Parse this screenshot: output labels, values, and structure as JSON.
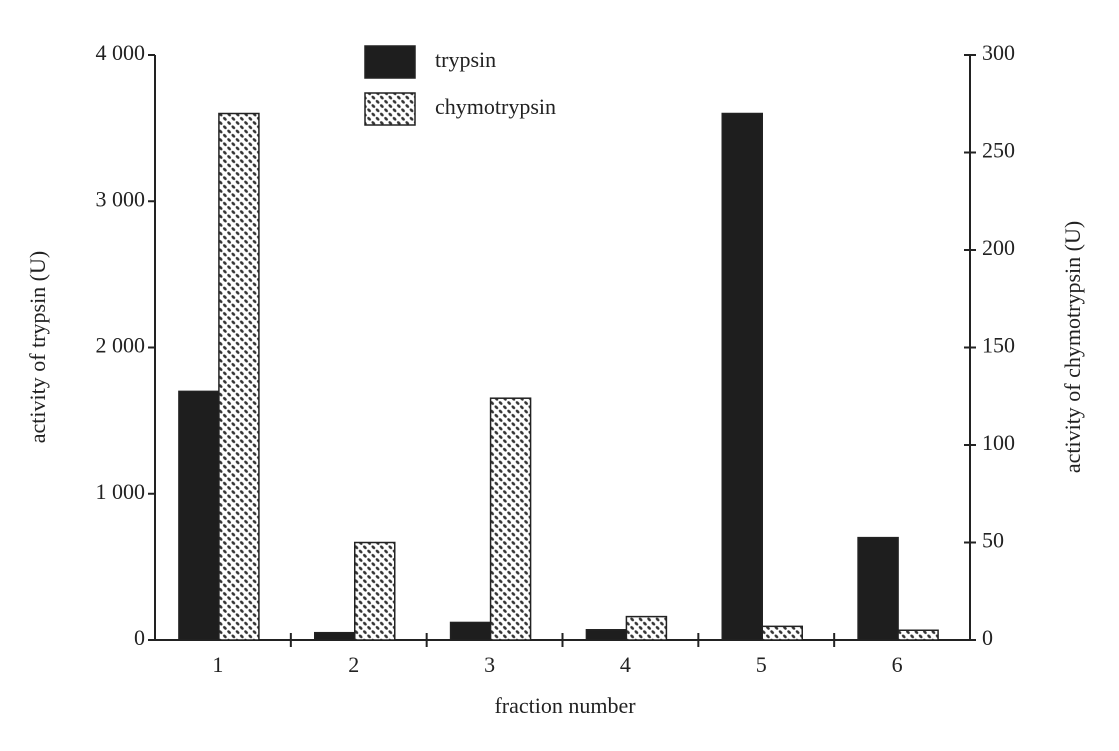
{
  "chart_data": {
    "type": "bar",
    "x_label": "fraction number",
    "y_label": "activity of trypsin (U)",
    "y2_label": "activity of chymotrypsin (U)",
    "categories": [
      "1",
      "2",
      "3",
      "4",
      "5",
      "6"
    ],
    "series": [
      {
        "name": "trypsin",
        "color": "#1e1e1e",
        "values": [
          1700,
          50,
          120,
          70,
          3600,
          700
        ]
      },
      {
        "name": "chymotrypsin",
        "color": "#333333",
        "axis": "y2",
        "values": [
          270,
          50,
          124,
          12,
          7,
          5
        ]
      }
    ],
    "ylim": [
      0,
      4000
    ],
    "yticks": [
      0,
      {
        "value": 1000,
        "label": "1 000"
      },
      {
        "value": 2000,
        "label": "2 000"
      },
      {
        "value": 3000,
        "label": "3 000"
      },
      {
        "value": 4000,
        "label": "4 000"
      }
    ],
    "y2lim": [
      0,
      300
    ],
    "y2ticks": [
      0,
      50,
      100,
      150,
      200,
      250,
      300
    ]
  }
}
